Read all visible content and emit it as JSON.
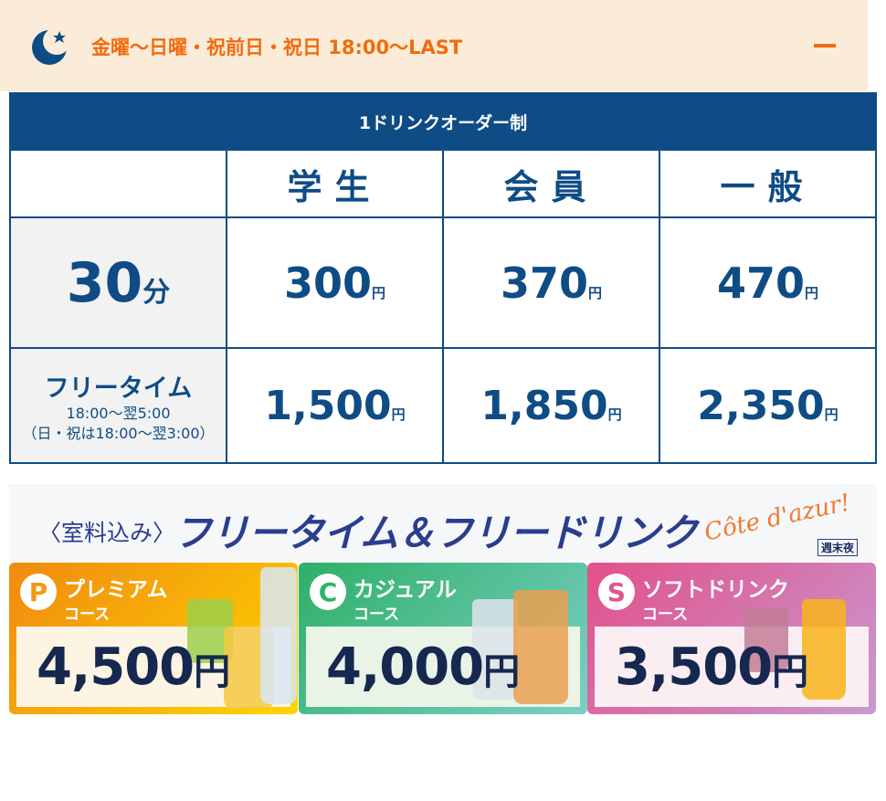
{
  "accordion": {
    "title": "金曜〜日曜・祝前日・祝日 18:00〜LAST",
    "icon": "moon-star-icon",
    "toggle_icon": "minus-icon"
  },
  "table": {
    "caption": "1ドリンクオーダー制",
    "columns": [
      "学生",
      "会員",
      "一般"
    ],
    "rows": [
      {
        "label": "30",
        "label_unit": "分",
        "prices": [
          "300",
          "370",
          "470"
        ]
      },
      {
        "label": "フリータイム",
        "sub1": "18:00〜翌5:00",
        "sub2": "（日・祝は18:00〜翌3:00）",
        "prices": [
          "1,500",
          "1,850",
          "2,350"
        ]
      }
    ],
    "yen": "円"
  },
  "banner": {
    "prefix": "〈室料込み〉",
    "title": "フリータイム＆フリードリンク",
    "logo": "Côte d'azur!",
    "badge": "週末夜"
  },
  "courses": [
    {
      "letter": "P",
      "name": "プレミアム",
      "kosu": "コース",
      "price": "4,500",
      "yen": "円",
      "color": "#f39a12"
    },
    {
      "letter": "C",
      "name": "カジュアル",
      "kosu": "コース",
      "price": "4,000",
      "yen": "円",
      "color": "#2fb36b"
    },
    {
      "letter": "S",
      "name": "ソフトドリンク",
      "kosu": "コース",
      "price": "3,500",
      "yen": "円",
      "color": "#e2568f"
    }
  ]
}
